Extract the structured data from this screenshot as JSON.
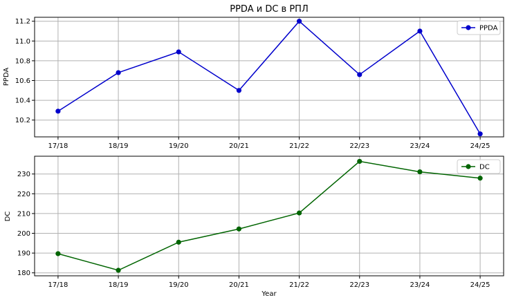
{
  "chart_data": [
    {
      "type": "line",
      "title": "PPDA и DC в РПЛ",
      "xlabel": "",
      "ylabel": "PPDA",
      "categories": [
        "17/18",
        "18/19",
        "19/20",
        "20/21",
        "21/22",
        "22/23",
        "23/24",
        "24/25"
      ],
      "series": [
        {
          "name": "PPDA",
          "color": "#0000cc",
          "values": [
            10.29,
            10.68,
            10.89,
            10.5,
            11.2,
            10.66,
            11.1,
            10.06
          ]
        }
      ],
      "ylim": [
        10.03,
        11.24
      ],
      "yticks": [
        "10.2",
        "10.4",
        "10.6",
        "10.8",
        "11.0",
        "11.2"
      ],
      "grid": true,
      "legend": "top-right"
    },
    {
      "type": "line",
      "title": "",
      "xlabel": "Year",
      "ylabel": "DC",
      "categories": [
        "17/18",
        "18/19",
        "19/20",
        "20/21",
        "21/22",
        "22/23",
        "23/24",
        "24/25"
      ],
      "series": [
        {
          "name": "DC",
          "color": "#006400",
          "values": [
            189.7,
            181.3,
            195.5,
            202.2,
            210.3,
            236.4,
            231.1,
            227.9
          ]
        }
      ],
      "ylim": [
        178.5,
        239.0
      ],
      "yticks": [
        "180",
        "190",
        "200",
        "210",
        "220",
        "230"
      ],
      "grid": true,
      "legend": "top-right"
    }
  ]
}
